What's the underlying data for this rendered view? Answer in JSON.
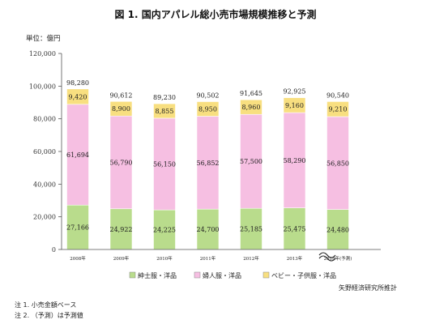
{
  "chart_data": {
    "type": "bar",
    "stacked": true,
    "title": "図 1. 国内アパレル総小売市場規模推移と予測",
    "unit_label": "単位：億円",
    "categories": [
      "2008年",
      "2009年",
      "2010年",
      "2011年",
      "2012年",
      "2013年",
      "2018年(予測)"
    ],
    "series": [
      {
        "name": "紳士服・洋品",
        "color": "#b9dc8c",
        "values": [
          27166,
          24922,
          24225,
          24700,
          25185,
          25475,
          24480
        ]
      },
      {
        "name": "婦人服・洋品",
        "color": "#f6bfe2",
        "values": [
          61694,
          56790,
          56150,
          56852,
          57500,
          58290,
          56850
        ]
      },
      {
        "name": "ベビー・子供服・洋品",
        "color": "#f8df80",
        "values": [
          9420,
          8900,
          8855,
          8950,
          8960,
          9160,
          9210
        ]
      }
    ],
    "series_labels": {
      "紳士服・洋品": [
        "27,166",
        "24,922",
        "24,225",
        "24,700",
        "25,185",
        "25,475",
        "24,480"
      ],
      "婦人服・洋品": [
        "61,694",
        "56,790",
        "56,150",
        "56,852",
        "57,500",
        "58,290",
        "56,850"
      ],
      "ベビー・子供服・洋品": [
        "9,420",
        "8,900",
        "8,855",
        "8,950",
        "8,960",
        "9,160",
        "9,210"
      ]
    },
    "totals": [
      "98,280",
      "90,612",
      "89,230",
      "90,502",
      "91,645",
      "92,925",
      "90,540"
    ],
    "ylim": [
      0,
      120000
    ],
    "yticks": [
      "0",
      "20,000",
      "40,000",
      "60,000",
      "80,000",
      "100,000",
      "120,000"
    ],
    "ytick_values": [
      0,
      20000,
      40000,
      60000,
      80000,
      100000,
      120000
    ],
    "grid": false,
    "axis_break": "between 2013年 and 2018年(予測)",
    "legend_position": "bottom"
  },
  "footer": {
    "source": "矢野経済研究所推計",
    "note1": "注 1.  小売金額ベース",
    "note2": "注 2.  （予測）は予測値"
  }
}
